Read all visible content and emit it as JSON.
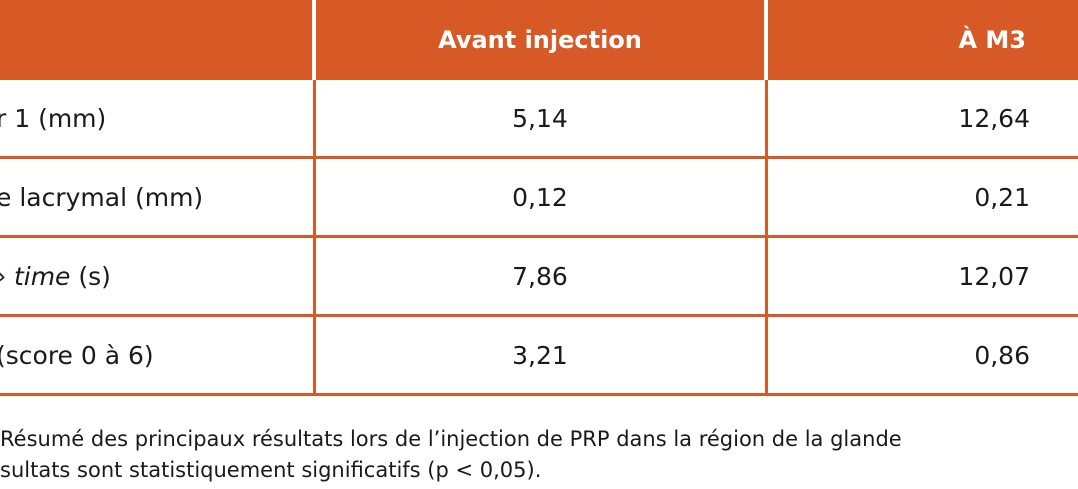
{
  "table": {
    "headers": [
      "",
      "Avant injection",
      "À M3"
    ],
    "rows": [
      {
        "label": "r 1 (mm)",
        "label_em": "",
        "label_rest": "",
        "before": "5,14",
        "m3": "12,64"
      },
      {
        "label": "e lacrymal (mm)",
        "label_em": "",
        "label_rest": "",
        "before": "0,12",
        "m3": "0,21"
      },
      {
        "label": "",
        "label_em": "time",
        "label_rest": " (s)",
        "before": "7,86",
        "m3": "12,07"
      },
      {
        "label": "(score 0 à 6)",
        "label_em": "",
        "label_rest": "",
        "before": "3,21",
        "m3": "0,86"
      }
    ],
    "accent_color": "#d75a26"
  },
  "caption": {
    "line1": "Résumé des principaux résultats lors de l’injection de PRP dans la région de la glande",
    "line2": "sultats sont statistiquement significatifs (p < 0,05)."
  }
}
